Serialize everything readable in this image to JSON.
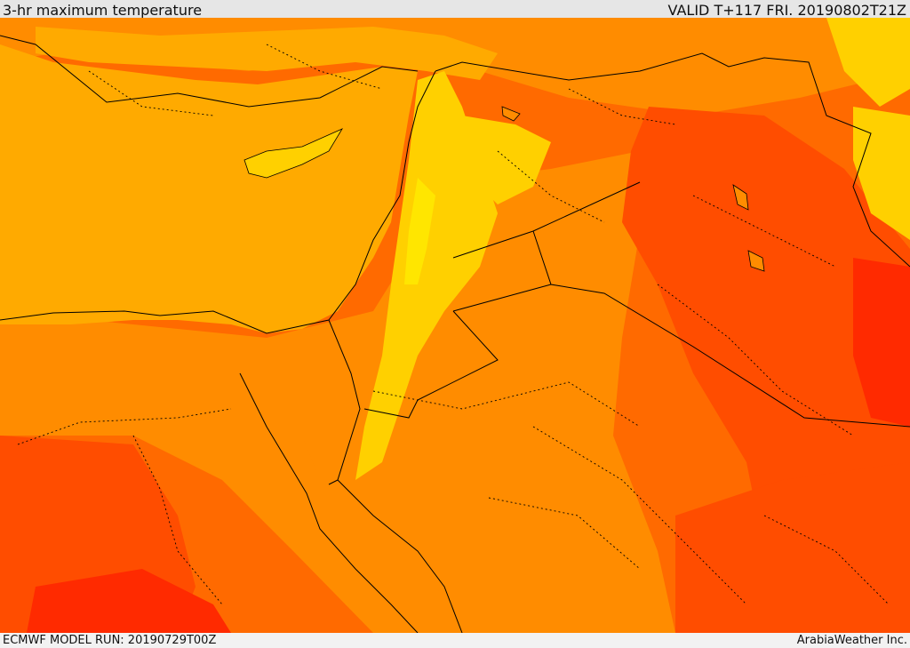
{
  "header": {
    "title": "3-hr maximum temperature",
    "valid": "VALID T+117 FRI. 20190802T21Z"
  },
  "footer": {
    "model_run": "ECMWF MODEL RUN: 20190729T00Z",
    "credit": "ArabiaWeather Inc."
  },
  "colors": {
    "sea": "#ffaa00",
    "warm": "#ff8c00",
    "hot": "#ff6a00",
    "hotter": "#ff4d00",
    "hottest": "#ff2a00",
    "mild": "#ffd000",
    "cool": "#ffe600",
    "border": "#000000"
  }
}
